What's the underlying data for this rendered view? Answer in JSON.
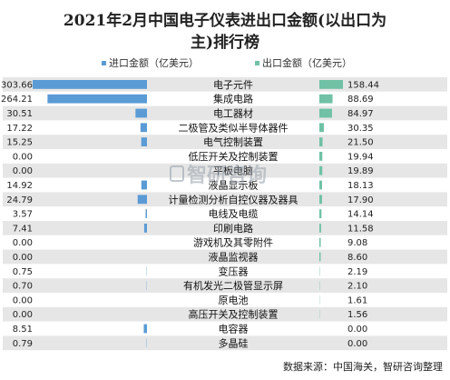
{
  "chart_data": {
    "type": "bar",
    "title": "2021年2月中国电子仪表进出口金额(以出口为主)排行榜",
    "title_lines": [
      "2021年2月中国电子仪表进出口金额(以出口为",
      "主)排行榜"
    ],
    "layout": "mirrored horizontal bars (import left, export right)",
    "categories": [
      "电子元件",
      "集成电路",
      "电工器材",
      "二极管及类似半导体器件",
      "电气控制装置",
      "低压开关及控制装置",
      "平板电脑",
      "液晶显示板",
      "计量检测分析自控仪器及器具",
      "电线及电缆",
      "印刷电路",
      "游戏机及其零附件",
      "液晶监视器",
      "变压器",
      "有机发光二极管显示屏",
      "原电池",
      "高压开关及控制装置",
      "电容器",
      "多晶硅"
    ],
    "series": [
      {
        "name": "进口金额（亿美元）",
        "color": "#5b9bd5",
        "values": [
          303.66,
          264.21,
          30.51,
          17.22,
          15.25,
          0.0,
          0.0,
          14.92,
          24.79,
          3.57,
          7.41,
          0.0,
          0.0,
          0.75,
          0.7,
          0.0,
          0.0,
          8.51,
          0.79
        ]
      },
      {
        "name": "出口金额（亿美元）",
        "color": "#70c1a5",
        "values": [
          158.44,
          88.69,
          84.97,
          30.35,
          21.5,
          19.94,
          19.89,
          18.13,
          17.9,
          14.14,
          11.58,
          9.08,
          8.6,
          2.19,
          2.1,
          1.61,
          1.56,
          0.0,
          0.0
        ]
      }
    ],
    "value_labels": {
      "import": [
        "303.66",
        "264.21",
        "30.51",
        "17.22",
        "15.25",
        "0.00",
        "0.00",
        "14.92",
        "24.79",
        "3.57",
        "7.41",
        "0.00",
        "0.00",
        "0.75",
        "0.70",
        "0.00",
        "0.00",
        "8.51",
        "0.79"
      ],
      "export": [
        "158.44",
        "88.69",
        "84.97",
        "30.35",
        "21.50",
        "19.94",
        "19.89",
        "18.13",
        "17.90",
        "14.14",
        "11.58",
        "9.08",
        "8.60",
        "2.19",
        "2.10",
        "1.61",
        "1.56",
        "0.00",
        "0.00"
      ]
    },
    "legend_position": "top",
    "grid": false
  },
  "source_text": "数据来源：中国海关，智研咨询整理",
  "watermark_text": "智研咨询",
  "colors": {
    "band_odd": "#e6e6e6",
    "band_even": "#ffffff"
  }
}
